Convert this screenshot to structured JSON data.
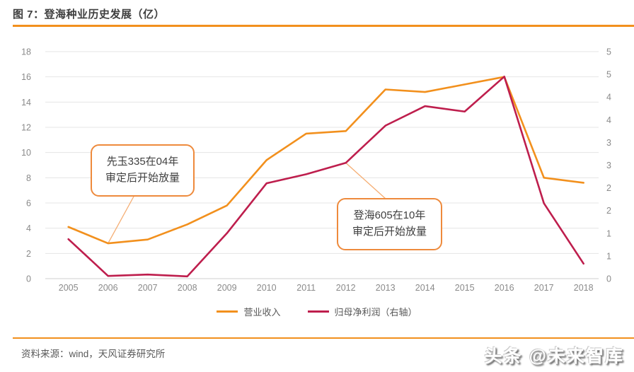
{
  "header": {
    "title": "图 7：登海种业历史发展（亿）"
  },
  "chart_data": {
    "type": "line",
    "title": "登海种业历史发展（亿）",
    "categories": [
      "2005",
      "2006",
      "2007",
      "2008",
      "2009",
      "2010",
      "2011",
      "2012",
      "2013",
      "2014",
      "2015",
      "2016",
      "2017",
      "2018"
    ],
    "series": [
      {
        "name": "营业收入",
        "axis": "left",
        "color": "#F2901D",
        "values": [
          4.1,
          2.8,
          3.1,
          4.3,
          5.8,
          9.4,
          11.5,
          11.7,
          15.0,
          14.8,
          15.4,
          16.0,
          8.0,
          7.6
        ]
      },
      {
        "name": "归母净利润（右轴）",
        "axis": "right",
        "color": "#BE1E4D",
        "values": [
          0.87,
          0.06,
          0.09,
          0.05,
          1.0,
          2.1,
          2.3,
          2.55,
          3.37,
          3.8,
          3.68,
          4.45,
          1.66,
          0.33
        ]
      }
    ],
    "left_axis": {
      "min": 0,
      "max": 18,
      "step": 2,
      "labels": [
        "0",
        "2",
        "4",
        "6",
        "8",
        "10",
        "12",
        "14",
        "16",
        "18"
      ]
    },
    "right_axis": {
      "min": 0,
      "max": 5,
      "step": 0.5,
      "labels": [
        "0",
        "1",
        "1",
        "2",
        "2",
        "3",
        "3",
        "4",
        "4",
        "5",
        "5"
      ]
    },
    "grid": true,
    "legend_position": "bottom",
    "annotations": [
      {
        "line1": "先玉335在04年",
        "line2": "审定后开始放量",
        "series_index": 0,
        "year_index": 1
      },
      {
        "line1": "登海605在10年",
        "line2": "审定后开始放量",
        "series_index": 1,
        "year_index": 7
      }
    ]
  },
  "footer": {
    "source": "资料来源：wind，天风证券研究所",
    "watermark": "头条 @未来智库"
  },
  "colors": {
    "accent_orange": "#F2901D",
    "revenue_line": "#F2901D",
    "profit_line": "#BE1E4D",
    "annotation_border": "#EE8A3C",
    "leader_line": "#F5AD72",
    "axis_text": "#8A8A8A",
    "gridline": "#E4E4E4"
  }
}
